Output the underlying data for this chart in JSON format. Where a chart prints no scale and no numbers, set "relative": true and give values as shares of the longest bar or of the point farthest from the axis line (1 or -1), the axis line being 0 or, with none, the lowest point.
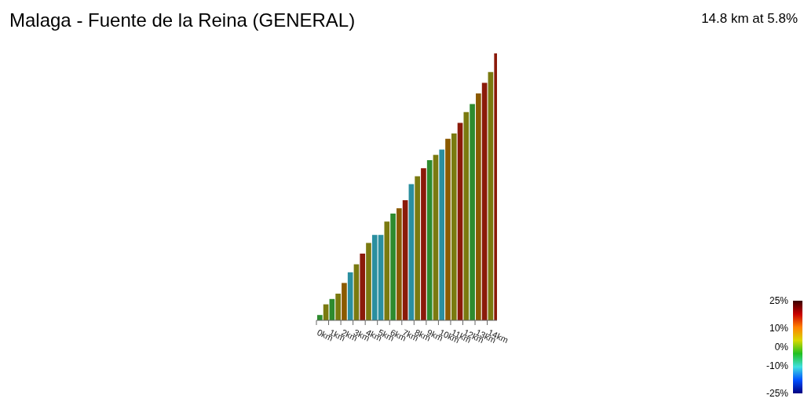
{
  "chart_data": {
    "type": "bar",
    "title": "Malaga - Fuente de la Reina (GENERAL)",
    "subtitle": "14.8 km at 5.8%",
    "relative": true,
    "x": [
      0.25,
      0.75,
      1.25,
      1.75,
      2.25,
      2.75,
      3.25,
      3.75,
      4.25,
      4.75,
      5.25,
      5.75,
      6.25,
      6.75,
      7.25,
      7.75,
      8.25,
      8.75,
      9.25,
      9.75,
      10.25,
      10.75,
      11.25,
      11.75,
      12.25,
      12.75,
      13.25,
      13.75,
      14.25,
      14.75
    ],
    "values": [
      0.02,
      0.06,
      0.08,
      0.1,
      0.14,
      0.18,
      0.21,
      0.25,
      0.29,
      0.32,
      0.32,
      0.37,
      0.4,
      0.42,
      0.45,
      0.51,
      0.54,
      0.57,
      0.6,
      0.62,
      0.64,
      0.68,
      0.7,
      0.74,
      0.78,
      0.81,
      0.85,
      0.89,
      0.93,
      1.0
    ],
    "colors": [
      "#2e8b2e",
      "#7a7a10",
      "#2e8b2e",
      "#7a7a10",
      "#8b5a00",
      "#2a8fa0",
      "#7a7a10",
      "#8b1a0a",
      "#7a7a10",
      "#2a8fa0",
      "#2a8fa0",
      "#7a7a10",
      "#2e8b2e",
      "#8b5a00",
      "#8b1a0a",
      "#2a8fa0",
      "#7a7a10",
      "#8b1a0a",
      "#2e8b2e",
      "#7a7a10",
      "#2a8fa0",
      "#8b5a00",
      "#7a7a10",
      "#8b1a0a",
      "#7a7a10",
      "#2e8b2e",
      "#8b5a00",
      "#8b1a0a",
      "#7a7a10",
      "#8b1a0a"
    ],
    "xlim": [
      0,
      14.8
    ],
    "xticks": [
      {
        "value": 0,
        "label": "0km"
      },
      {
        "value": 1,
        "label": "1km"
      },
      {
        "value": 2,
        "label": "2km"
      },
      {
        "value": 3,
        "label": "3km"
      },
      {
        "value": 4,
        "label": "4km"
      },
      {
        "value": 5,
        "label": "5km"
      },
      {
        "value": 6,
        "label": "6km"
      },
      {
        "value": 7,
        "label": "7km"
      },
      {
        "value": 8,
        "label": "8km"
      },
      {
        "value": 9,
        "label": "9km"
      },
      {
        "value": 10,
        "label": "10km"
      },
      {
        "value": 11,
        "label": "11km"
      },
      {
        "value": 12,
        "label": "12km"
      },
      {
        "value": 13,
        "label": "13km"
      },
      {
        "value": 14,
        "label": "14km"
      }
    ],
    "clim": [
      -25,
      25
    ],
    "cticks": [
      {
        "value": 25,
        "label": "25%"
      },
      {
        "value": 10,
        "label": "10%"
      },
      {
        "value": 0,
        "label": "0%"
      },
      {
        "value": -10,
        "label": "-10%"
      },
      {
        "value": -25,
        "label": "-25%"
      }
    ],
    "tick_labels": "x"
  }
}
